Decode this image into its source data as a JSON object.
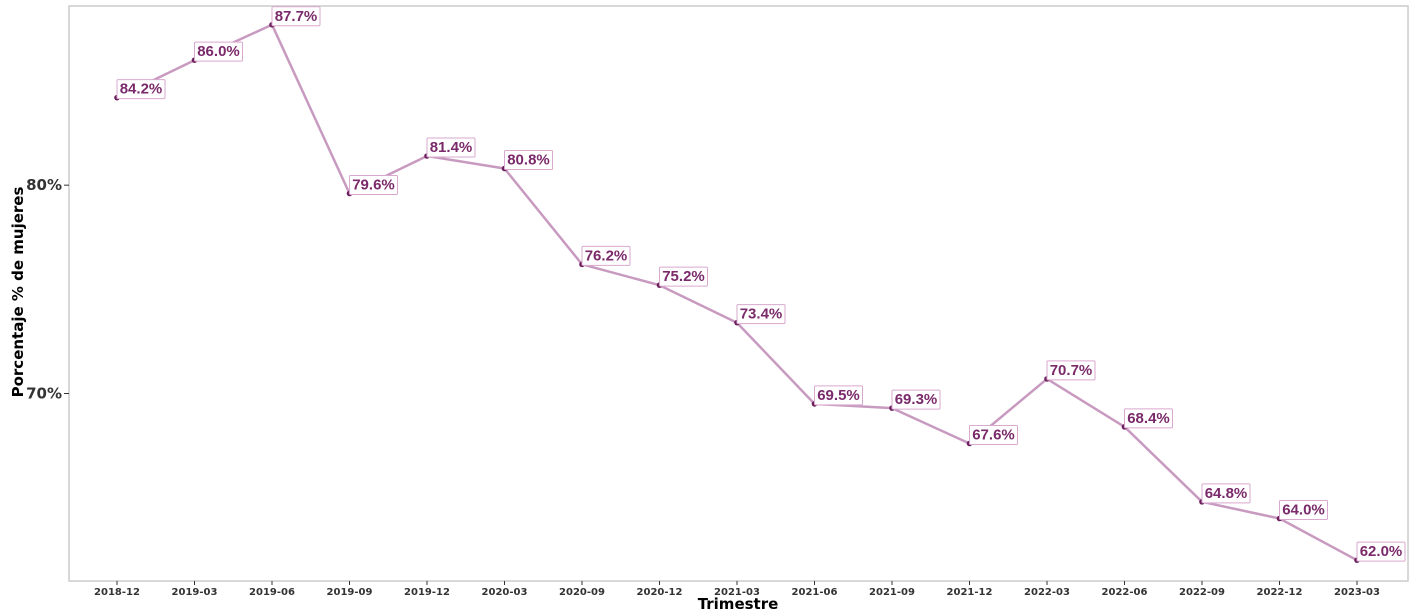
{
  "chart_data": {
    "type": "line",
    "title": "",
    "xlabel": "Trimestre",
    "ylabel": "Porcentaje % de mujeres",
    "ylim": [
      61.0,
      88.6
    ],
    "yticks": [
      70,
      80
    ],
    "ytick_labels": [
      "70%",
      "80%"
    ],
    "categories": [
      "2018-12",
      "2019-03",
      "2019-06",
      "2019-09",
      "2019-12",
      "2020-03",
      "2020-09",
      "2020-12",
      "2021-03",
      "2021-06",
      "2021-09",
      "2021-12",
      "2022-03",
      "2022-06",
      "2022-09",
      "2022-12",
      "2023-03"
    ],
    "values": [
      84.2,
      86.0,
      87.7,
      79.6,
      81.4,
      80.8,
      76.2,
      75.2,
      73.4,
      69.5,
      69.3,
      67.6,
      70.7,
      68.4,
      64.8,
      64.0,
      62.0
    ],
    "labels": [
      "84.2%",
      "86.0%",
      "87.7%",
      "79.6%",
      "81.4%",
      "80.8%",
      "76.2%",
      "75.2%",
      "73.4%",
      "69.5%",
      "69.3%",
      "67.6%",
      "70.7%",
      "68.4%",
      "64.8%",
      "64.0%",
      "62.0%"
    ],
    "grid": false,
    "colors": {
      "line": "#c89ac0",
      "point": "#6b1f5c",
      "label_text": "#7a2a6a",
      "label_border": "#d9a9cf"
    }
  }
}
